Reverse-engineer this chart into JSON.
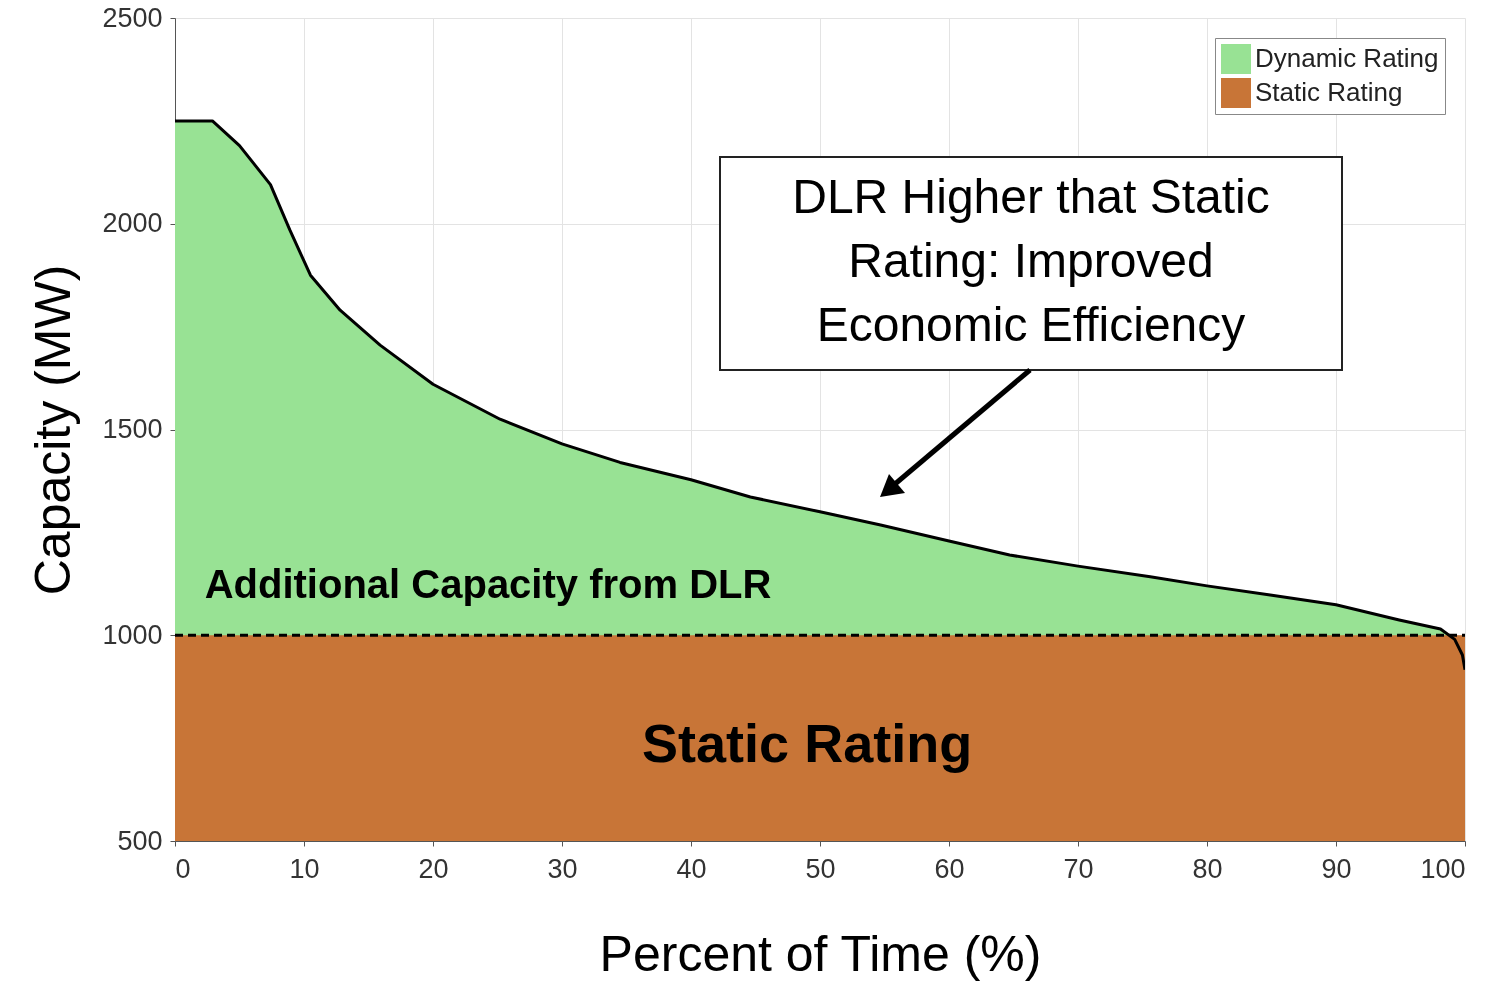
{
  "chart_data": {
    "type": "area",
    "xlabel": "Percent of Time (%)",
    "ylabel": "Capacity (MW)",
    "xlim": [
      0,
      100
    ],
    "xticks": [
      0,
      10,
      20,
      30,
      40,
      50,
      60,
      70,
      80,
      90,
      100
    ],
    "ylim": [
      500,
      2500
    ],
    "yticks": [
      500,
      1000,
      1500,
      2000,
      2500
    ],
    "grid": true,
    "legend": "top right",
    "series": [
      {
        "name": "Dynamic Rating",
        "color": "#98e294",
        "line_style": "solid",
        "x": [
          0,
          2.9,
          5,
          7.4,
          8.9,
          10.5,
          12.8,
          15.9,
          20,
          25.2,
          30,
          34.5,
          40,
          44.6,
          50,
          54.7,
          60,
          64.7,
          70,
          75.6,
          80,
          84.9,
          90,
          94.9,
          98.1,
          99.2,
          99.8,
          100
        ],
        "values": [
          2250,
          2250,
          2190,
          2095,
          1985,
          1875,
          1790,
          1705,
          1610,
          1525,
          1465,
          1420,
          1378,
          1336,
          1300,
          1268,
          1229,
          1195,
          1168,
          1142,
          1120,
          1098,
          1074,
          1037,
          1015,
          990,
          952,
          916
        ]
      },
      {
        "name": "Static Rating",
        "color": "#c87537",
        "line_style": "dashed",
        "x": [
          0,
          100
        ],
        "values": [
          1000,
          1000
        ]
      }
    ],
    "annotations": [
      "DLR Higher that Static Rating: Improved Economic Efficiency",
      "Additional Capacity from DLR",
      "Static Rating"
    ]
  }
}
